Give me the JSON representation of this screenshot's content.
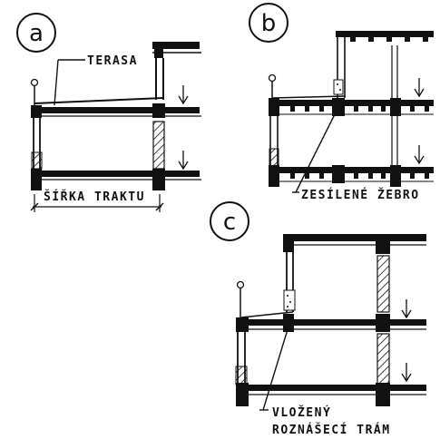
{
  "panels": [
    {
      "id": "a",
      "letter": "a",
      "labels": [
        "TERASA",
        "ŠÍŘKA TRAKTU"
      ]
    },
    {
      "id": "b",
      "letter": "b",
      "labels": [
        "ZESÍLENÉ ŽEBRO"
      ]
    },
    {
      "id": "c",
      "letter": "c",
      "labels": [
        "VLOŽENÝ",
        "ROZNÁŠECÍ TRÁM"
      ]
    }
  ],
  "colors": {
    "ink": "#111111",
    "paper": "#ffffff"
  }
}
